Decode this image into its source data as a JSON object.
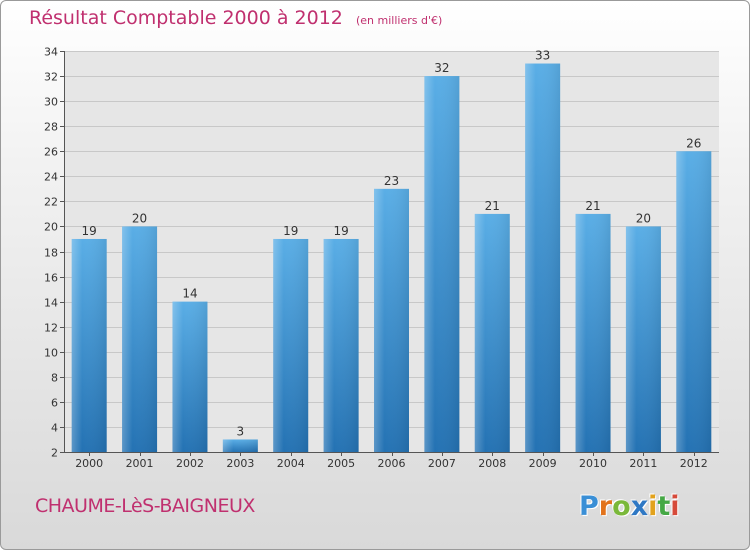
{
  "chart_data": {
    "type": "bar",
    "title": "Résultat Comptable 2000 à 2012",
    "subtitle": "(en milliers d'€)",
    "categories": [
      "2000",
      "2001",
      "2002",
      "2003",
      "2004",
      "2005",
      "2006",
      "2007",
      "2008",
      "2009",
      "2010",
      "2011",
      "2012"
    ],
    "values": [
      19,
      20,
      14,
      3,
      19,
      19,
      23,
      32,
      21,
      33,
      21,
      20,
      26
    ],
    "value_labels": [
      "19",
      "20",
      "14",
      "3",
      "19",
      "19",
      "23",
      "32",
      "21",
      "33",
      "21",
      "20",
      "26"
    ],
    "ylim": [
      2,
      34
    ],
    "yticks": [
      2,
      4,
      6,
      8,
      10,
      12,
      14,
      16,
      18,
      20,
      22,
      24,
      26,
      28,
      30,
      32,
      34
    ],
    "ytick_labels": [
      "2",
      "4",
      "6",
      "8",
      "10",
      "12",
      "14",
      "16",
      "18",
      "20",
      "22",
      "24",
      "26",
      "28",
      "30",
      "32",
      "34"
    ],
    "xlabel": "",
    "ylabel": "",
    "grid": true
  },
  "place_name": "CHAUME-LèS-BAIGNEUX",
  "logo": {
    "letters": [
      {
        "char": "P",
        "color": "#3a8fd6"
      },
      {
        "char": "r",
        "color": "#e2731c"
      },
      {
        "char": "o",
        "color": "#7ab83a"
      },
      {
        "char": "x",
        "color": "#2f78c4"
      },
      {
        "char": "i",
        "color": "#e2a21c"
      },
      {
        "char": "t",
        "color": "#45a845"
      },
      {
        "char": "i",
        "color": "#d64a3a"
      }
    ]
  },
  "colors": {
    "title": "#c0306f",
    "bar_light": "#5aaee6",
    "bar_dark": "#2472b3",
    "grid": "#c8c8c8",
    "plot_bg": "#e6e6e6"
  }
}
